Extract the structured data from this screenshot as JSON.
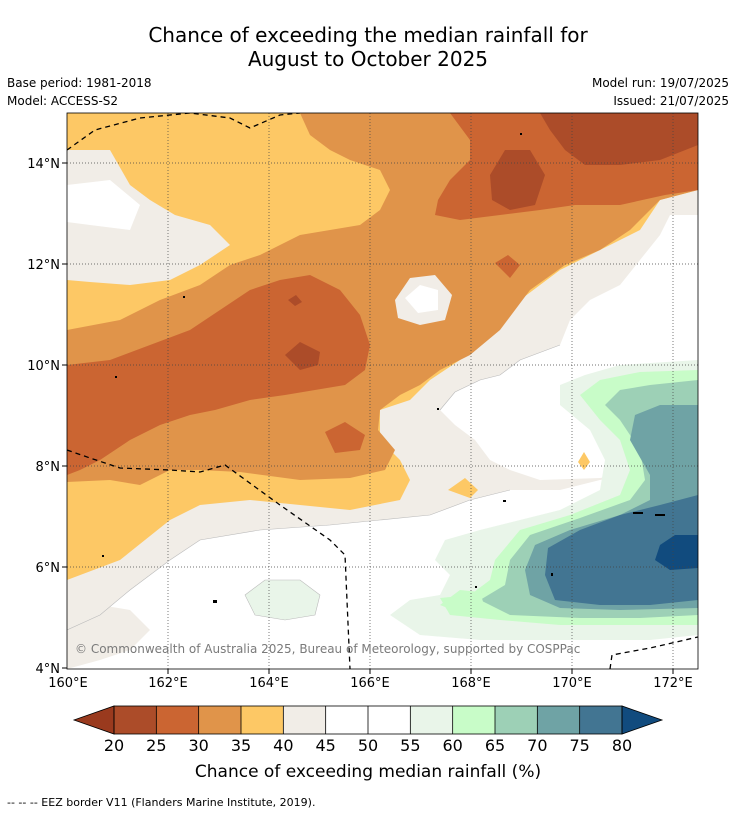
{
  "title": {
    "line1": "Chance of exceeding the median rainfall for",
    "line2": "August to October 2025"
  },
  "meta": {
    "base_period": "Base period: 1981-2018",
    "model": "Model: ACCESS-S2",
    "model_run": "Model run: 19/07/2025",
    "issued": "Issued: 21/07/2025"
  },
  "map": {
    "lat_labels": [
      "14°N",
      "12°N",
      "10°N",
      "8°N",
      "6°N",
      "4°N"
    ],
    "lon_labels": [
      "160°E",
      "162°E",
      "164°E",
      "166°E",
      "168°E",
      "170°E",
      "172°E"
    ],
    "copyright": "© Commonwealth of Australia 2025, Bureau of Meteorology, supported by COSPPac"
  },
  "colorbar": {
    "ticks": [
      "20",
      "25",
      "30",
      "35",
      "40",
      "45",
      "50",
      "55",
      "60",
      "65",
      "70",
      "75",
      "80"
    ],
    "colors": [
      "#ac4c29",
      "#cb6532",
      "#e0944a",
      "#fdc865",
      "#f1ede7",
      "#ffffff",
      "#ffffff",
      "#e9f5e9",
      "#c8fcc8",
      "#9dd0b6",
      "#6fa3a5",
      "#427592"
    ],
    "low_color": "#9a3a1e",
    "high_color": "#114b7e",
    "label": "Chance of exceeding median rainfall (%)"
  },
  "legend_note": "--  --  -- EEZ border V11 (Flanders Marine Institute, 2019)."
}
